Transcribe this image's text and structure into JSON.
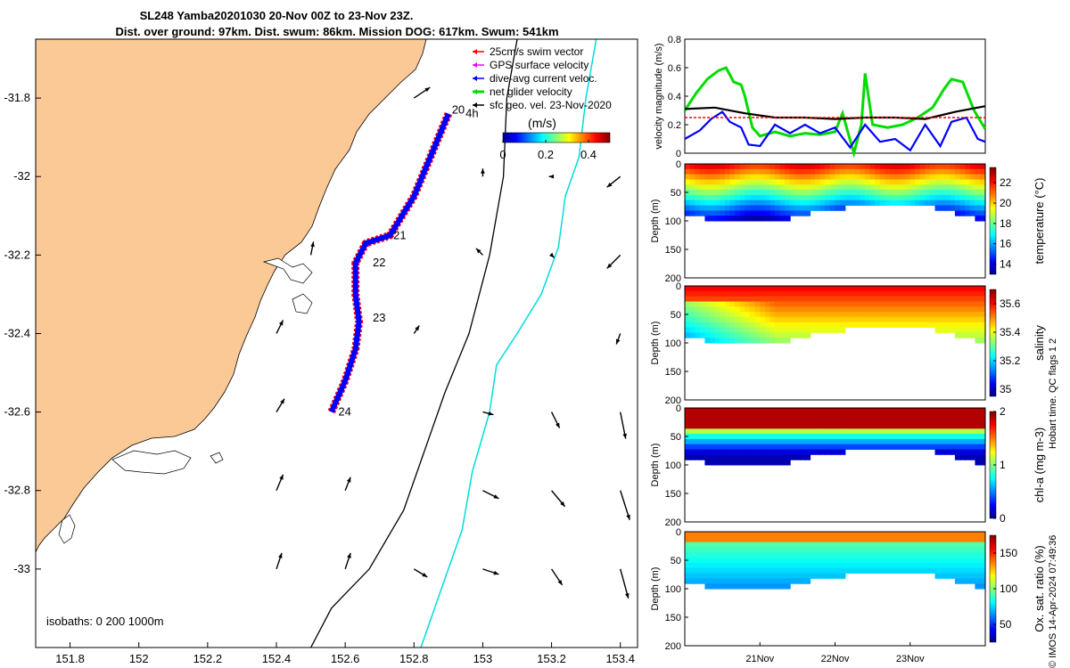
{
  "title": {
    "line1": "SL248 Yamba20201030 20-Nov 00Z to 23-Nov 23Z.",
    "line2": "Dist. over ground: 97km. Dist. swum: 86km. Mission DOG: 617km. Swum: 541km"
  },
  "colors": {
    "land": "#fbc996",
    "swim_vector": "#ff0000",
    "gps_velocity": "#ff00ff",
    "dive_current": "#0000ff",
    "net_velocity": "#00dd00",
    "sfc_geo": "#000000",
    "isobath_1000": "#00dddd"
  },
  "chart_data": [
    {
      "type": "map",
      "xlim": [
        151.7,
        153.45
      ],
      "ylim": [
        -33.2,
        -31.65
      ],
      "xticks": [
        151.8,
        152,
        152.2,
        152.4,
        152.6,
        152.8,
        153,
        153.2,
        153.4
      ],
      "yticks": [
        -31.8,
        -32,
        -32.2,
        -32.4,
        -32.6,
        -32.8,
        -33
      ],
      "xtick_labels": [
        "151.8",
        "152",
        "152.2",
        "152.4",
        "152.6",
        "152.8",
        "153",
        "153.2",
        "153.4"
      ],
      "ytick_labels": [
        "-31.8",
        "-32",
        "-32.2",
        "-32.4",
        "-32.6",
        "-32.8",
        "-33"
      ],
      "legend": [
        {
          "label": "25cm/s swim vector",
          "color": "#ff0000"
        },
        {
          "label": "GPS surface velocity",
          "color": "#ff00ff"
        },
        {
          "label": "dive-avg current veloc.",
          "color": "#0000ff"
        },
        {
          "label": "net glider velocity",
          "color": "#00dd00"
        },
        {
          "label": "sfc geo. vel. 23-Nov-2020",
          "color": "#000000"
        }
      ],
      "colorbar": {
        "label": "(m/s)",
        "ticks": [
          0,
          0.2,
          0.4
        ],
        "tick_labels": [
          "0",
          "0.2",
          "0.4"
        ],
        "range": [
          0,
          0.5
        ]
      },
      "isobath_note": "isobaths: 0   200  1000m",
      "track": [
        [
          152.9,
          -31.84
        ],
        [
          152.8,
          -32.05
        ],
        [
          152.73,
          -32.15
        ],
        [
          152.66,
          -32.17
        ],
        [
          152.63,
          -32.22
        ],
        [
          152.63,
          -32.3
        ],
        [
          152.64,
          -32.37
        ],
        [
          152.63,
          -32.44
        ],
        [
          152.6,
          -32.52
        ],
        [
          152.56,
          -32.6
        ]
      ],
      "day_labels": [
        {
          "text": "20",
          "lon": 152.91,
          "lat": -31.83
        },
        {
          "text": "4h",
          "lon": 152.95,
          "lat": -31.84
        },
        {
          "text": "21",
          "lon": 152.74,
          "lat": -32.15
        },
        {
          "text": "22",
          "lon": 152.68,
          "lat": -32.22
        },
        {
          "text": "23",
          "lon": 152.68,
          "lat": -32.36
        },
        {
          "text": "24",
          "lon": 152.58,
          "lat": -32.6
        }
      ],
      "isobath_200": [
        [
          153.1,
          -31.65
        ],
        [
          153.07,
          -31.8
        ],
        [
          153.06,
          -32
        ],
        [
          153.02,
          -32.2
        ],
        [
          152.96,
          -32.4
        ],
        [
          152.89,
          -32.55
        ],
        [
          152.83,
          -32.7
        ],
        [
          152.77,
          -32.85
        ],
        [
          152.67,
          -33
        ],
        [
          152.56,
          -33.1
        ],
        [
          152.5,
          -33.2
        ]
      ],
      "isobath_1000": [
        [
          153.33,
          -31.65
        ],
        [
          153.3,
          -31.8
        ],
        [
          153.28,
          -31.95
        ],
        [
          153.24,
          -32.05
        ],
        [
          153.22,
          -32.18
        ],
        [
          153.17,
          -32.3
        ],
        [
          153.1,
          -32.4
        ],
        [
          153.04,
          -32.48
        ],
        [
          153.02,
          -32.6
        ],
        [
          152.97,
          -32.75
        ],
        [
          152.94,
          -32.9
        ],
        [
          152.88,
          -33.05
        ],
        [
          152.82,
          -33.2
        ]
      ],
      "geo_vectors": [
        {
          "lon": 152.8,
          "lat": -31.8,
          "u": 0.12,
          "v": 0.08
        },
        {
          "lon": 152.5,
          "lat": -32.2,
          "u": 0.02,
          "v": 0.1
        },
        {
          "lon": 153,
          "lat": -32.2,
          "u": -0.05,
          "v": 0.05
        },
        {
          "lon": 153.2,
          "lat": -32.2,
          "u": 0.02,
          "v": -0.02
        },
        {
          "lon": 153.4,
          "lat": -32.2,
          "u": -0.1,
          "v": -0.1
        },
        {
          "lon": 153,
          "lat": -32,
          "u": 0.0,
          "v": 0.06
        },
        {
          "lon": 153.2,
          "lat": -32,
          "u": -0.02,
          "v": 0.0
        },
        {
          "lon": 153.4,
          "lat": -32,
          "u": -0.1,
          "v": -0.08
        },
        {
          "lon": 152.4,
          "lat": -32.4,
          "u": 0.05,
          "v": 0.1
        },
        {
          "lon": 152.8,
          "lat": -32.4,
          "u": 0.04,
          "v": 0.06
        },
        {
          "lon": 153.4,
          "lat": -32.4,
          "u": -0.03,
          "v": -0.08
        },
        {
          "lon": 152.4,
          "lat": -32.6,
          "u": 0.06,
          "v": 0.1
        },
        {
          "lon": 153,
          "lat": -32.6,
          "u": 0.08,
          "v": -0.02
        },
        {
          "lon": 153.2,
          "lat": -32.6,
          "u": 0.06,
          "v": -0.12
        },
        {
          "lon": 153.4,
          "lat": -32.6,
          "u": 0.04,
          "v": -0.2
        },
        {
          "lon": 152.4,
          "lat": -32.8,
          "u": 0.05,
          "v": 0.12
        },
        {
          "lon": 152.6,
          "lat": -32.8,
          "u": 0.04,
          "v": 0.1
        },
        {
          "lon": 153,
          "lat": -32.8,
          "u": 0.12,
          "v": -0.06
        },
        {
          "lon": 153.2,
          "lat": -32.8,
          "u": 0.1,
          "v": -0.12
        },
        {
          "lon": 153.4,
          "lat": -32.8,
          "u": 0.07,
          "v": -0.22
        },
        {
          "lon": 152.4,
          "lat": -33,
          "u": 0.04,
          "v": 0.12
        },
        {
          "lon": 152.6,
          "lat": -33,
          "u": 0.04,
          "v": 0.12
        },
        {
          "lon": 152.8,
          "lat": -33,
          "u": 0.1,
          "v": -0.06
        },
        {
          "lon": 153,
          "lat": -33,
          "u": 0.12,
          "v": -0.04
        },
        {
          "lon": 153.2,
          "lat": -33,
          "u": 0.08,
          "v": -0.12
        },
        {
          "lon": 153.4,
          "lat": -33,
          "u": 0.06,
          "v": -0.22
        }
      ]
    },
    {
      "type": "line",
      "ylabel": "velocity magnitude (m/s)",
      "ylim": [
        0,
        0.8
      ],
      "yticks": [
        0,
        0.2,
        0.4,
        0.6,
        0.8
      ],
      "ytick_labels": [
        "0",
        "0.2",
        "0.4",
        "0.6",
        "0.8"
      ],
      "xlim": [
        0,
        4
      ],
      "series": [
        {
          "color": "#00dd00",
          "x": [
            0,
            0.15,
            0.3,
            0.45,
            0.55,
            0.65,
            0.75,
            0.8,
            0.9,
            1.0,
            1.2,
            1.4,
            1.6,
            1.8,
            2.0,
            2.1,
            2.25,
            2.35,
            2.4,
            2.5,
            2.7,
            2.9,
            3.1,
            3.3,
            3.45,
            3.55,
            3.7,
            3.85,
            4.0
          ],
          "y": [
            0.3,
            0.42,
            0.52,
            0.58,
            0.6,
            0.5,
            0.48,
            0.4,
            0.18,
            0.12,
            0.15,
            0.12,
            0.14,
            0.13,
            0.15,
            0.28,
            0.0,
            0.2,
            0.56,
            0.2,
            0.18,
            0.2,
            0.25,
            0.32,
            0.45,
            0.52,
            0.5,
            0.3,
            0.17
          ]
        },
        {
          "color": "#0000ff",
          "x": [
            0,
            0.2,
            0.35,
            0.5,
            0.6,
            0.75,
            0.85,
            1.0,
            1.2,
            1.4,
            1.6,
            1.8,
            2.0,
            2.2,
            2.4,
            2.6,
            2.8,
            3.0,
            3.2,
            3.4,
            3.55,
            3.75,
            3.9,
            4.0
          ],
          "y": [
            0.1,
            0.16,
            0.24,
            0.29,
            0.22,
            0.18,
            0.06,
            0.05,
            0.2,
            0.14,
            0.2,
            0.14,
            0.18,
            0.04,
            0.2,
            0.08,
            0.1,
            0.02,
            0.2,
            0.05,
            0.22,
            0.25,
            0.1,
            0.08
          ]
        },
        {
          "color": "#000000",
          "x": [
            0,
            0.4,
            0.8,
            1.2,
            1.6,
            2.0,
            2.4,
            2.8,
            3.2,
            3.6,
            4.0
          ],
          "y": [
            0.31,
            0.32,
            0.28,
            0.25,
            0.25,
            0.24,
            0.25,
            0.25,
            0.24,
            0.29,
            0.33
          ]
        },
        {
          "color": "#ff0000",
          "x": [
            0,
            4
          ],
          "y": [
            0.25,
            0.25
          ]
        }
      ]
    },
    {
      "type": "heatmap",
      "ylabel": "Depth (m)",
      "cbar_label": "temperature (°C)",
      "ylim": [
        0,
        200
      ],
      "yticks": [
        0,
        50,
        100,
        150,
        200
      ],
      "ytick_labels": [
        "0",
        "50",
        "100",
        "150",
        "200"
      ],
      "clim": [
        13,
        23.5
      ],
      "cbar_ticks": [
        14,
        16,
        18,
        20,
        22
      ],
      "cbar_tick_labels": [
        "14",
        "16",
        "18",
        "20",
        "22"
      ]
    },
    {
      "type": "heatmap",
      "ylabel": "Depth (m)",
      "cbar_label": "salinity",
      "ylim": [
        0,
        200
      ],
      "yticks": [
        0,
        50,
        100,
        150,
        200
      ],
      "ytick_labels": [
        "0",
        "50",
        "100",
        "150",
        "200"
      ],
      "clim": [
        34.95,
        35.7
      ],
      "cbar_ticks": [
        35,
        35.2,
        35.4,
        35.6
      ],
      "cbar_tick_labels": [
        "35",
        "35.2",
        "35.4",
        "35.6"
      ]
    },
    {
      "type": "heatmap",
      "ylabel": "Depth (m)",
      "cbar_label": "chl-a (mg m-3)",
      "ylim": [
        0,
        200
      ],
      "yticks": [
        0,
        50,
        100,
        150,
        200
      ],
      "ytick_labels": [
        "0",
        "50",
        "100",
        "150",
        "200"
      ],
      "clim": [
        0,
        2
      ],
      "cbar_ticks": [
        0,
        1,
        2
      ],
      "cbar_tick_labels": [
        "0",
        "1",
        "2"
      ]
    },
    {
      "type": "heatmap",
      "ylabel": "Depth (m)",
      "cbar_label": "Ox. sat. ratio (%)",
      "ylim": [
        0,
        200
      ],
      "yticks": [
        0,
        50,
        100,
        150,
        200
      ],
      "ytick_labels": [
        "0",
        "50",
        "100",
        "150",
        "200"
      ],
      "clim": [
        25,
        175
      ],
      "cbar_ticks": [
        50,
        100,
        150
      ],
      "cbar_tick_labels": [
        "50",
        "100",
        "150"
      ],
      "xticks": [
        1,
        2,
        3
      ],
      "xtick_labels": [
        "21Nov",
        "22Nov",
        "23Nov"
      ]
    }
  ],
  "footer": {
    "qc_flags": "Hobart time. QC flags 1  2",
    "credit": "© IMOS 14-Apr-2024 07:49:36"
  }
}
